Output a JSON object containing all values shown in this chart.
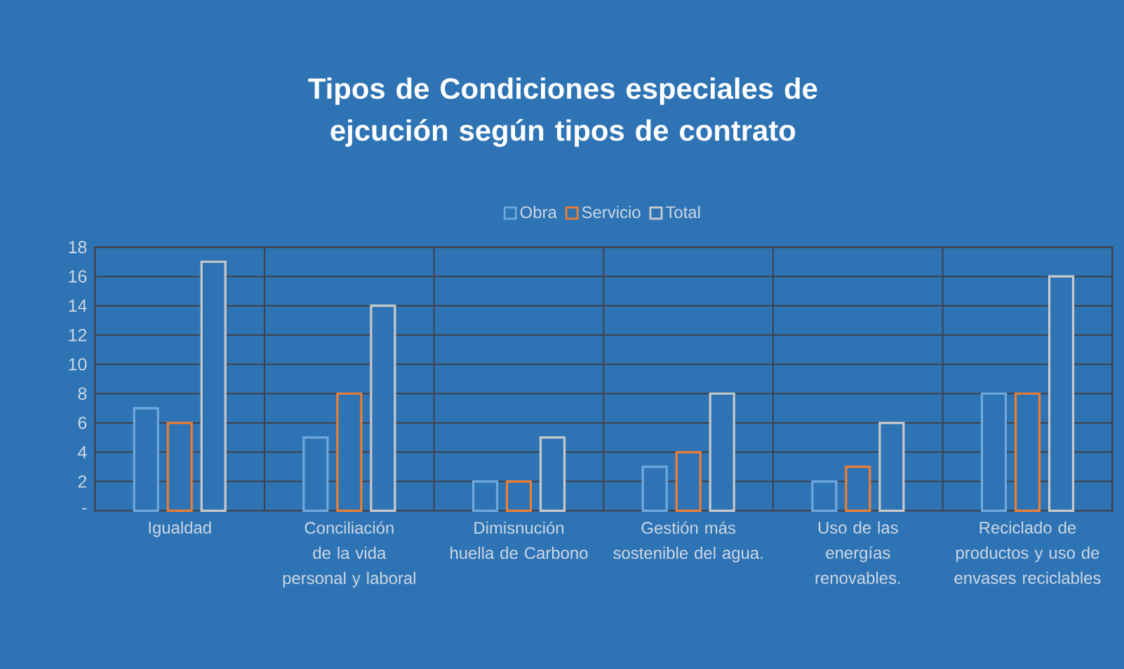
{
  "chart_data": {
    "type": "bar",
    "title": "Tipos de Condiciones especiales de ejcución según tipos de contrato",
    "categories": [
      "Igualdad",
      "Conciliación de la vida personal y laboral",
      "Dimisnución huella de Carbono",
      "Gestión más sostenible del agua.",
      "Uso de las energías renovables.",
      "Reciclado de productos y uso de envases reciclables"
    ],
    "series": [
      {
        "name": "Obra",
        "color": "#6fa8dc",
        "values": [
          7,
          5,
          2,
          3,
          2,
          8
        ]
      },
      {
        "name": "Servicio",
        "color": "#ed7d31",
        "values": [
          6,
          8,
          2,
          4,
          3,
          8
        ]
      },
      {
        "name": "Total",
        "color": "#c9c9c9",
        "values": [
          17,
          14,
          5,
          8,
          6,
          16
        ]
      }
    ],
    "ylim": [
      0,
      18
    ],
    "yticks": [
      {
        "value": 0,
        "label": "-"
      },
      2,
      4,
      6,
      8,
      10,
      12,
      14,
      16,
      18
    ],
    "grid": true,
    "legend": "top"
  }
}
